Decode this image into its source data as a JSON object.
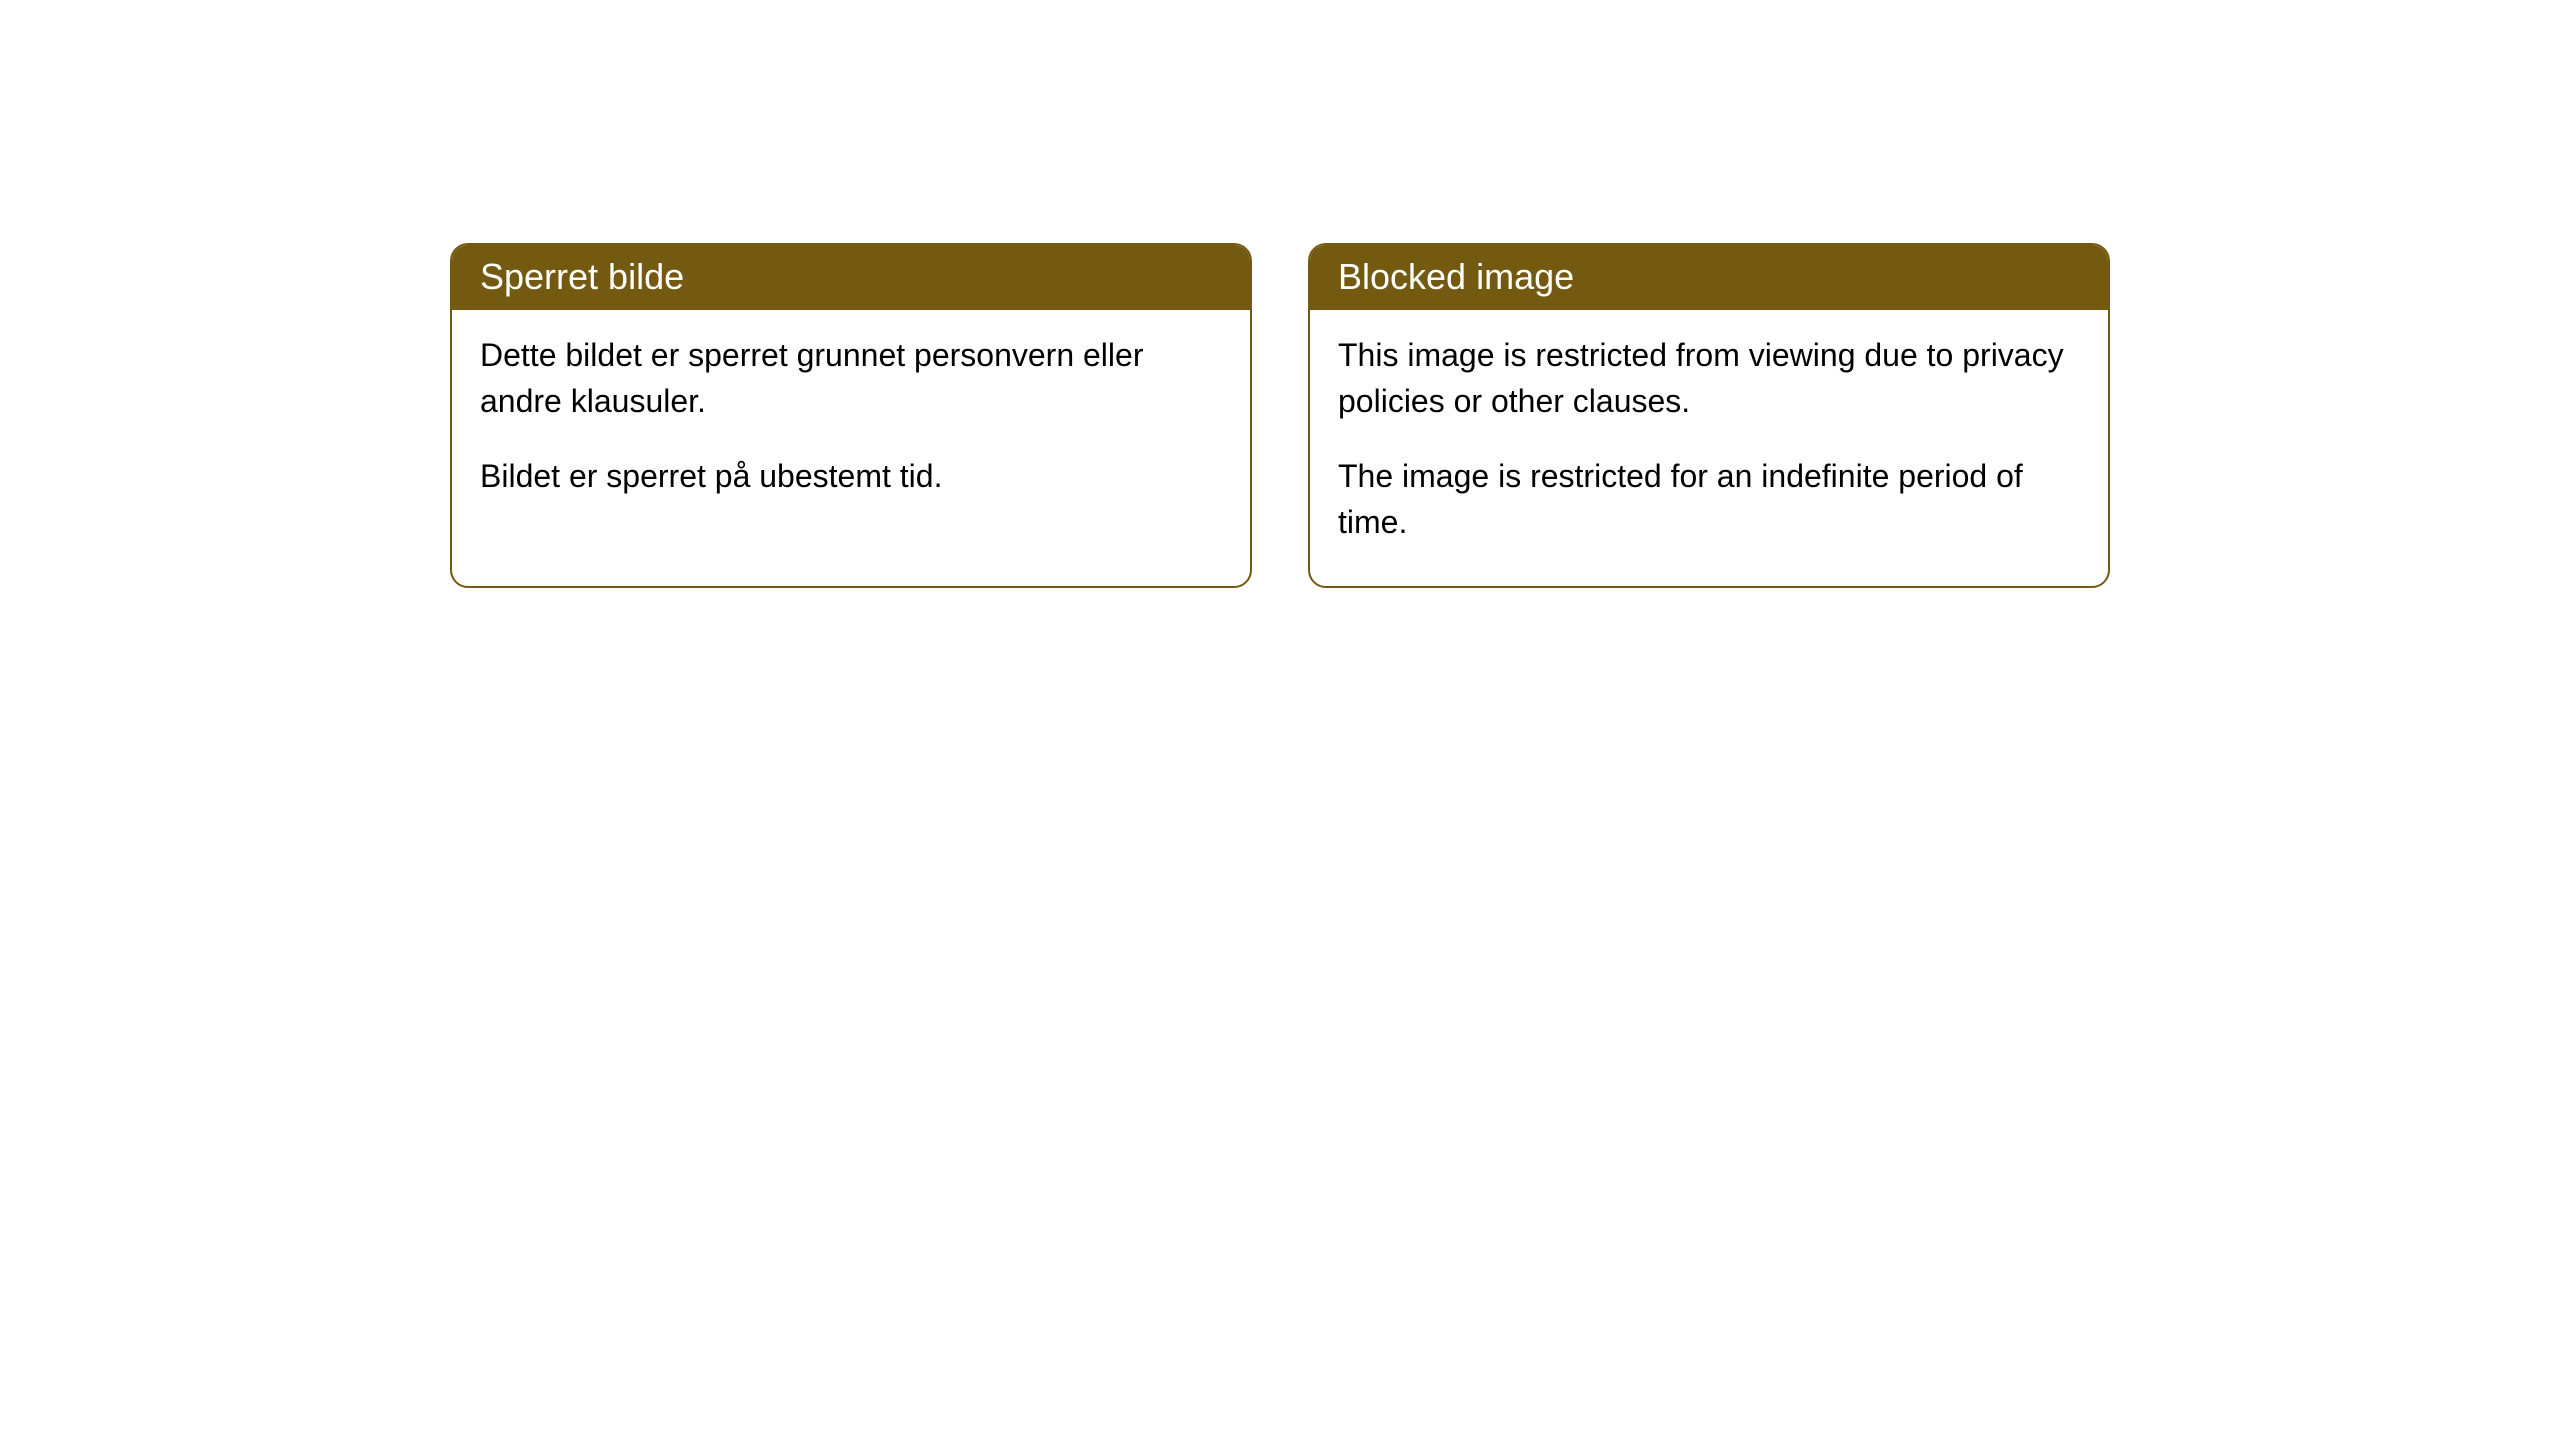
{
  "cards": [
    {
      "title": "Sperret bilde",
      "paragraph1": "Dette bildet er sperret grunnet personvern eller andre klausuler.",
      "paragraph2": "Bildet er sperret på ubestemt tid."
    },
    {
      "title": "Blocked image",
      "paragraph1": "This image is restricted from viewing due to privacy policies or other clauses.",
      "paragraph2": "The image is restricted for an indefinite period of time."
    }
  ],
  "styling": {
    "header_bg_color": "#745a11",
    "header_text_color": "#ffffff",
    "border_color": "#745a11",
    "border_radius": "18px",
    "card_bg_color": "#ffffff",
    "body_text_color": "#000000",
    "title_fontsize": 36,
    "body_fontsize": 32
  }
}
